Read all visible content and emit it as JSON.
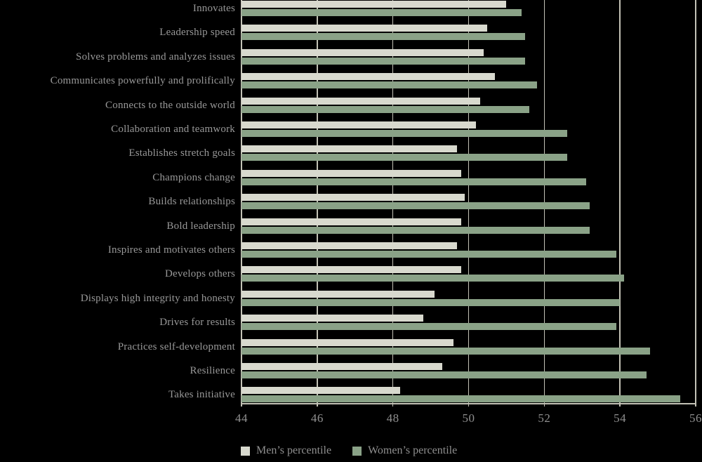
{
  "chart_data": {
    "type": "bar",
    "orientation": "horizontal",
    "categories": [
      "Innovates",
      "Leadership speed",
      "Solves problems and analyzes issues",
      "Communicates powerfully and prolifically",
      "Connects to the outside world",
      "Collaboration and teamwork",
      "Establishes stretch goals",
      "Champions change",
      "Builds relationships",
      "Bold leadership",
      "Inspires and motivates others",
      "Develops others",
      "Displays high integrity and honesty",
      "Drives for results",
      "Practices self-development",
      "Resilience",
      "Takes initiative"
    ],
    "series": [
      {
        "name": "Men’s percentile",
        "color": "#d8d9ce",
        "values": [
          51.0,
          50.5,
          50.4,
          50.7,
          50.3,
          50.2,
          49.7,
          49.8,
          49.9,
          49.8,
          49.7,
          49.8,
          49.1,
          48.8,
          49.6,
          49.3,
          48.2
        ]
      },
      {
        "name": "Women’s percentile",
        "color": "#8aa287",
        "values": [
          51.4,
          51.5,
          51.5,
          51.8,
          51.6,
          52.6,
          52.6,
          53.1,
          53.2,
          53.2,
          53.9,
          54.1,
          54.0,
          53.9,
          54.8,
          54.7,
          55.6
        ]
      }
    ],
    "xlim": [
      44,
      56
    ],
    "xticks": [
      "44",
      "46",
      "48",
      "50",
      "52",
      "54",
      "56"
    ],
    "grid": true,
    "legend_position": "bottom",
    "background_color": "#000000",
    "gridline_color": "#c3c2b6",
    "label_color": "#989898"
  }
}
